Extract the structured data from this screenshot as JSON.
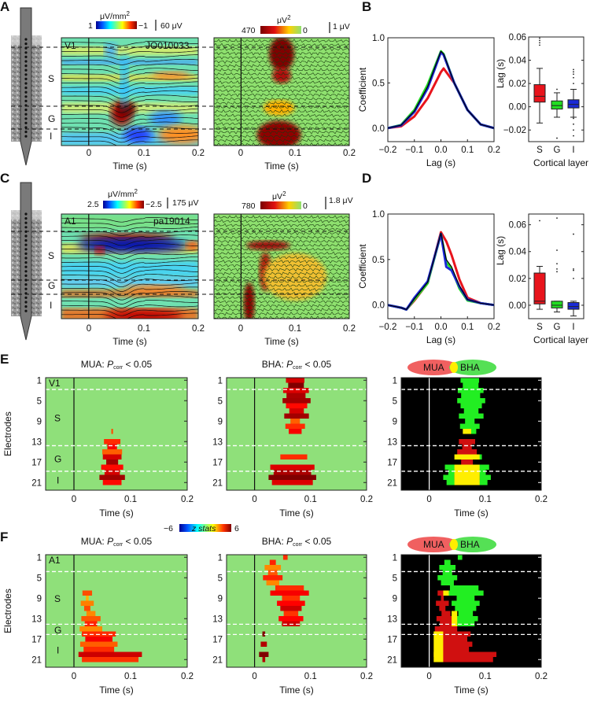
{
  "panel_labels": {
    "a": "A",
    "b": "B",
    "c": "C",
    "d": "D",
    "e": "E",
    "f": "F"
  },
  "panel_a": {
    "csd_units": "μV/mm",
    "csd_units_sup": "2",
    "csd_cb_left": "1",
    "csd_cb_right": "−1",
    "csd_scale": "60 μV",
    "power_units": "μV",
    "power_units_sup": "2",
    "power_cb_left": "470",
    "power_cb_right": "0",
    "power_scale": "1 μV",
    "area": "V1",
    "session": "JO010033",
    "layers": [
      "S",
      "G",
      "I"
    ],
    "xticks": [
      "0",
      "0.1",
      "0.2"
    ],
    "xlabel": "Time (s)"
  },
  "panel_c": {
    "csd_units": "μV/mm",
    "csd_units_sup": "2",
    "csd_cb_left": "2.5",
    "csd_cb_right": "−2.5",
    "csd_scale": "175 μV",
    "power_units": "μV",
    "power_units_sup": "2",
    "power_cb_left": "780",
    "power_cb_right": "0",
    "power_scale": "1.8 μV",
    "area": "A1",
    "session": "pa19014",
    "layers": [
      "S",
      "G",
      "I"
    ],
    "xticks": [
      "0",
      "0.1",
      "0.2"
    ],
    "xlabel": "Time (s)"
  },
  "colors": {
    "S": "#e8141c",
    "G": "#22dd22",
    "I": "#1a2ad6",
    "all": "#000000",
    "mua": "#f06060",
    "bha": "#55e055",
    "overlap": "#ffee00",
    "heat_bg": "#8fe07a"
  },
  "chart_data": [
    {
      "id": "B-xcorr",
      "type": "line",
      "xlabel": "Lag (s)",
      "ylabel": "Coefficient",
      "xlim": [
        -0.2,
        0.2
      ],
      "ylim": [
        -0.15,
        1.0
      ],
      "xticks": [
        "−0.2",
        "−0.1",
        "0.0",
        "0.1",
        "0.2"
      ],
      "yticks": [
        "0.0",
        "0.5",
        "1.0"
      ],
      "x": [
        -0.2,
        -0.15,
        -0.1,
        -0.05,
        0.0,
        0.01,
        0.05,
        0.1,
        0.15,
        0.2
      ],
      "series": [
        {
          "color": "S",
          "values": [
            0,
            0.02,
            0.13,
            0.33,
            0.62,
            0.66,
            0.5,
            0.2,
            0.04,
            0
          ]
        },
        {
          "color": "G",
          "values": [
            0,
            0.035,
            0.2,
            0.48,
            0.85,
            0.82,
            0.5,
            0.2,
            0.04,
            0
          ]
        },
        {
          "color": "I",
          "values": [
            0,
            0.03,
            0.18,
            0.44,
            0.84,
            0.81,
            0.5,
            0.2,
            0.04,
            0
          ]
        },
        {
          "color": "all",
          "values": [
            0,
            0.032,
            0.19,
            0.46,
            0.85,
            0.82,
            0.5,
            0.2,
            0.04,
            0
          ]
        }
      ]
    },
    {
      "id": "B-box",
      "type": "box",
      "xlabel": "Cortical layer",
      "ylabel": "Lag (s)",
      "ylim": [
        -0.03,
        0.06
      ],
      "yticks": [
        "−0.02",
        "0.00",
        "0.02",
        "0.04",
        "0.06"
      ],
      "categories": [
        "S",
        "G",
        "I"
      ],
      "boxes": [
        {
          "cat": "S",
          "whisker_low": -0.014,
          "q1": 0.004,
          "median": 0.009,
          "q3": 0.019,
          "whisker_high": 0.033,
          "outliers": [
            0.053,
            0.055,
            0.057,
            0.059
          ]
        },
        {
          "cat": "G",
          "whisker_low": -0.009,
          "q1": -0.002,
          "median": 0.001,
          "q3": 0.005,
          "whisker_high": 0.012,
          "outliers": [
            0.015,
            -0.027
          ]
        },
        {
          "cat": "I",
          "whisker_low": -0.009,
          "q1": -0.001,
          "median": 0.002,
          "q3": 0.006,
          "whisker_high": 0.015,
          "outliers": [
            0.02,
            0.025,
            0.028,
            0.03,
            0.032,
            -0.01,
            -0.015,
            -0.02,
            -0.025
          ]
        }
      ]
    },
    {
      "id": "D-xcorr",
      "type": "line",
      "xlabel": "Lag (s)",
      "ylabel": "Coefficient",
      "xlim": [
        -0.2,
        0.2
      ],
      "ylim": [
        -0.15,
        1.0
      ],
      "xticks": [
        "−0.2",
        "−0.1",
        "0.0",
        "0.1",
        "0.2"
      ],
      "yticks": [
        "0.0",
        "0.5",
        "1.0"
      ],
      "x": [
        -0.2,
        -0.15,
        -0.13,
        -0.1,
        -0.05,
        0.0,
        0.02,
        0.04,
        0.07,
        0.1,
        0.15,
        0.2
      ],
      "series": [
        {
          "color": "S",
          "values": [
            0,
            -0.03,
            -0.05,
            0.05,
            0.24,
            0.8,
            0.7,
            0.55,
            0.28,
            0.08,
            0.02,
            0
          ]
        },
        {
          "color": "G",
          "values": [
            0,
            -0.03,
            -0.05,
            0.06,
            0.24,
            0.78,
            0.47,
            0.4,
            0.18,
            0.05,
            0.02,
            0
          ]
        },
        {
          "color": "I",
          "values": [
            0,
            -0.03,
            -0.05,
            0.08,
            0.26,
            0.78,
            0.42,
            0.38,
            0.2,
            0.06,
            0.02,
            0
          ]
        },
        {
          "color": "all",
          "values": [
            0,
            -0.03,
            -0.05,
            0.07,
            0.25,
            0.79,
            0.5,
            0.42,
            0.21,
            0.06,
            0.02,
            0
          ]
        }
      ]
    },
    {
      "id": "D-box",
      "type": "box",
      "xlabel": "Cortical layer",
      "ylabel": "Lag (s)",
      "ylim": [
        -0.01,
        0.068
      ],
      "yticks": [
        "0.00",
        "0.02",
        "0.04",
        "0.06"
      ],
      "categories": [
        "S",
        "G",
        "I"
      ],
      "boxes": [
        {
          "cat": "S",
          "whisker_low": -0.003,
          "q1": 0.001,
          "median": 0.003,
          "q3": 0.024,
          "whisker_high": 0.029,
          "outliers": [
            0.063
          ]
        },
        {
          "cat": "G",
          "whisker_low": -0.005,
          "q1": -0.002,
          "median": 0.0,
          "q3": 0.003,
          "whisker_high": 0.003,
          "outliers": [
            0.025,
            0.027,
            0.031,
            0.041,
            0.065
          ]
        },
        {
          "cat": "I",
          "whisker_low": -0.008,
          "q1": -0.003,
          "median": -0.001,
          "q3": 0.002,
          "whisker_high": 0.003,
          "outliers": [
            0.02,
            0.026,
            0.027,
            0.053
          ]
        }
      ]
    },
    {
      "id": "E-heatmaps",
      "type": "heatmap",
      "xlabel": "Time (s)",
      "ylabel": "Electrodes",
      "xlim": [
        -0.05,
        0.2
      ],
      "xticks": [
        "0",
        "0.1",
        "0.2"
      ],
      "yticks": [
        "1",
        "5",
        "9",
        "13",
        "17",
        "21"
      ],
      "colorbar": {
        "label": "z stats",
        "min": "−6",
        "max": "6"
      },
      "titles": [
        {
          "prefix": "MUA: ",
          "p": "P",
          "sub": "corr",
          "suffix": " < 0.05"
        },
        {
          "prefix": "BHA: ",
          "p": "P",
          "sub": "corr",
          "suffix": " < 0.05"
        }
      ],
      "legend": [
        "MUA",
        "BHA"
      ],
      "area": "V1",
      "layers": [
        "S",
        "G",
        "I"
      ],
      "mua_regions": [
        [
          11,
          13,
          0.06,
          0.075,
          3
        ],
        [
          13,
          16,
          0.05,
          0.085,
          4
        ],
        [
          16,
          22,
          0.045,
          0.09,
          5
        ]
      ],
      "bha_regions": [
        [
          1,
          2,
          0.05,
          0.095,
          5
        ],
        [
          2,
          5,
          0.048,
          0.1,
          5.5
        ],
        [
          5,
          9,
          0.05,
          0.1,
          5
        ],
        [
          9,
          12,
          0.055,
          0.09,
          4
        ],
        [
          16,
          17,
          0.04,
          0.1,
          4
        ],
        [
          18,
          22,
          0.025,
          0.11,
          5.5
        ]
      ]
    },
    {
      "id": "F-heatmaps",
      "type": "heatmap",
      "xlabel": "Time (s)",
      "ylabel": "Electrodes",
      "xlim": [
        -0.05,
        0.2
      ],
      "xticks": [
        "0",
        "0.1",
        "0.2"
      ],
      "yticks": [
        "1",
        "5",
        "9",
        "13",
        "17",
        "21"
      ],
      "titles": [
        {
          "prefix": "MUA: ",
          "p": "P",
          "sub": "corr",
          "suffix": " < 0.05"
        },
        {
          "prefix": "BHA: ",
          "p": "P",
          "sub": "corr",
          "suffix": " < 0.05"
        }
      ],
      "legend": [
        "MUA",
        "BHA"
      ],
      "area": "A1",
      "layers": [
        "S",
        "G",
        "I"
      ],
      "mua_regions": [
        [
          8,
          12,
          0.012,
          0.035,
          3
        ],
        [
          12,
          16,
          0.01,
          0.05,
          3.5
        ],
        [
          16,
          20,
          0.008,
          0.08,
          4
        ],
        [
          20,
          22,
          0.008,
          0.12,
          4.5
        ]
      ],
      "bha_regions": [
        [
          1,
          2,
          0.045,
          0.065,
          4
        ],
        [
          2,
          7,
          0.015,
          0.05,
          3.5
        ],
        [
          7,
          9,
          0.025,
          0.1,
          4
        ],
        [
          9,
          15,
          0.04,
          0.09,
          4.5
        ],
        [
          16,
          22,
          0.008,
          0.025,
          6
        ]
      ]
    }
  ]
}
